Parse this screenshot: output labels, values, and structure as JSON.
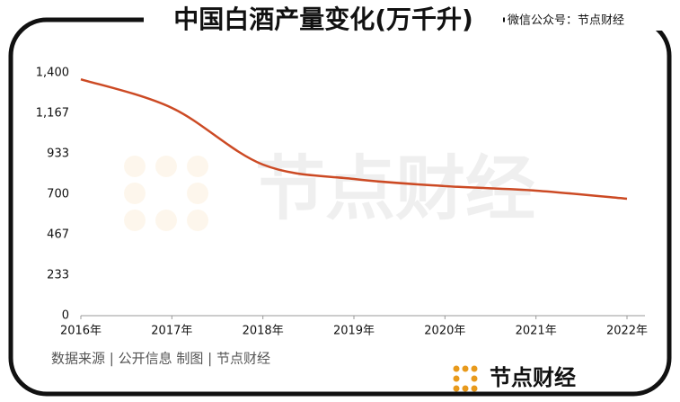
{
  "chart_data": {
    "type": "line",
    "title": "中国白酒产量变化(万千升)",
    "categories": [
      "2016年",
      "2017年",
      "2018年",
      "2019年",
      "2020年",
      "2021年",
      "2022年"
    ],
    "series": [
      {
        "name": "白酒产量",
        "color": "#cc4a24",
        "values": [
          1363,
          1198,
          871,
          788,
          747,
          721,
          674
        ]
      }
    ],
    "ylim": [
      0,
      1400
    ],
    "yticks": [
      0,
      233,
      467,
      700,
      933,
      {
        "value": 1167,
        "label": "1,167"
      },
      {
        "value": 1400,
        "label": "1,400"
      }
    ],
    "grid": false
  },
  "credit": "微信公众号：节点财经",
  "source": "数据来源 | 公开信息  制图 | 节点财经",
  "brand": "节点财经",
  "watermark": "节点财经"
}
